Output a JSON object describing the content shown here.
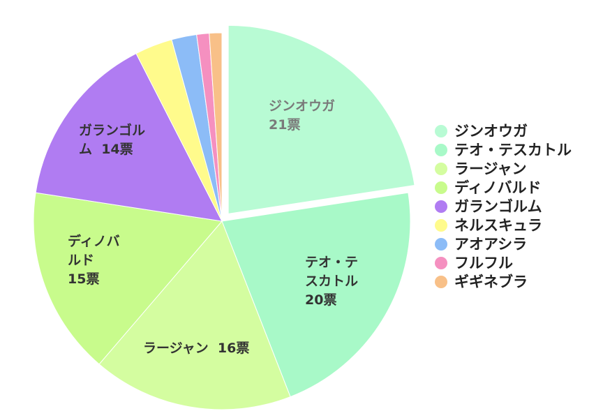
{
  "chart_data": {
    "type": "pie",
    "unit": "票",
    "slices": [
      {
        "name": "ジンオウガ",
        "value": 21,
        "color": "#b8fbd4",
        "exploded": true,
        "label_lines": [
          "ジンオウガ",
          "21票"
        ]
      },
      {
        "name": "テオ・テスカトル",
        "value": 20,
        "color": "#a8f9c8",
        "exploded": false,
        "label_lines": [
          "テオ・テ",
          "スカトル",
          "20票"
        ]
      },
      {
        "name": "ラージャン",
        "value": 16,
        "color": "#d4fda0",
        "exploded": false,
        "label_lines": [
          "ラージャン  16票"
        ]
      },
      {
        "name": "ディノバルド",
        "value": 15,
        "color": "#c8fb8c",
        "exploded": false,
        "label_lines": [
          "ディノバ",
          "ルド",
          "15票"
        ]
      },
      {
        "name": "ガランゴルム",
        "value": 14,
        "color": "#b07cf2",
        "exploded": false,
        "label_lines": [
          "ガランゴル",
          "ム  14票"
        ]
      },
      {
        "name": "ネルスキュラ",
        "value": 3,
        "color": "#fffb8c",
        "exploded": false,
        "label_lines": []
      },
      {
        "name": "アオアシラ",
        "value": 2,
        "color": "#8cbcf7",
        "exploded": false,
        "label_lines": []
      },
      {
        "name": "フルフル",
        "value": 1,
        "color": "#f590c0",
        "exploded": false,
        "label_lines": []
      },
      {
        "name": "ギギネブラ",
        "value": 1,
        "color": "#f8c088",
        "exploded": false,
        "label_lines": []
      }
    ],
    "legend_position": "right"
  }
}
